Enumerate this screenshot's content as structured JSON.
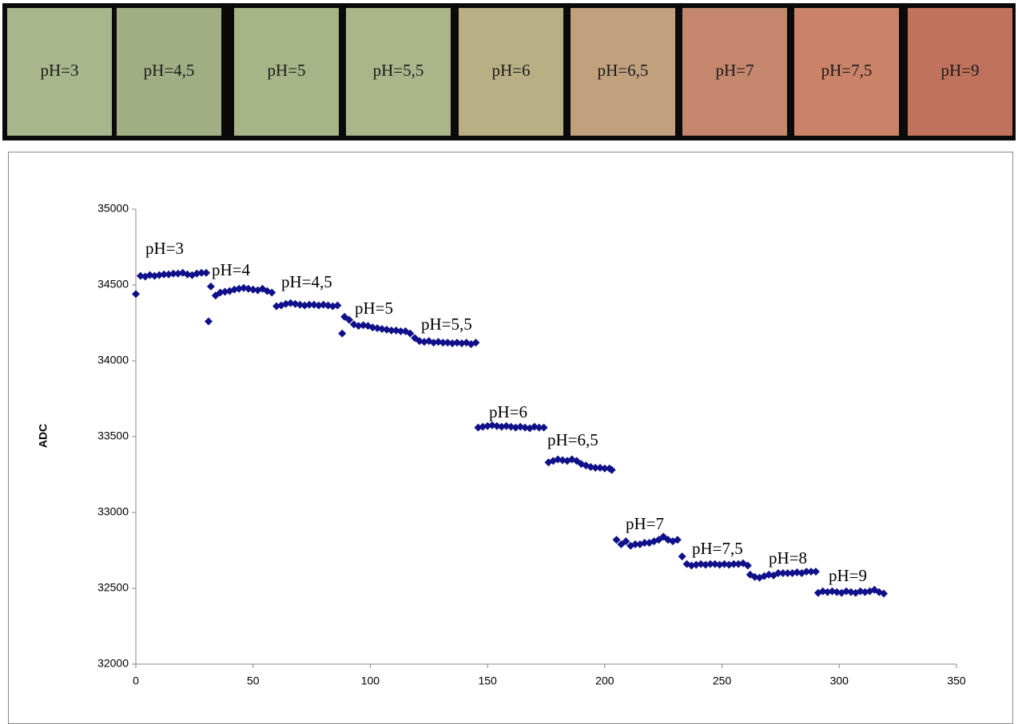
{
  "swatches": [
    {
      "label": "pH=3",
      "color": "#a9b58b"
    },
    {
      "label": "pH=4,5",
      "color": "#a1ae83"
    },
    {
      "label": "pH=5",
      "color": "#a7b487"
    },
    {
      "label": "pH=5,5",
      "color": "#abb589"
    },
    {
      "label": "pH=6",
      "color": "#b8b084"
    },
    {
      "label": "pH=6,5",
      "color": "#c1a07e"
    },
    {
      "label": "pH=7",
      "color": "#c4876d"
    },
    {
      "label": "pH=7,5",
      "color": "#ca8369"
    },
    {
      "label": "pH=9",
      "color": "#c1725d"
    }
  ],
  "chart_data": {
    "type": "scatter",
    "ylabel": "ADC",
    "color": "#10108a",
    "xlim": [
      0,
      350
    ],
    "xticks": [
      0,
      50,
      100,
      150,
      200,
      250,
      300,
      350
    ],
    "ylim": [
      32000,
      35000
    ],
    "yticks": [
      32000,
      32500,
      33000,
      33500,
      34000,
      34500,
      35000
    ],
    "x": [
      0,
      2,
      4,
      6,
      8,
      10,
      12,
      14,
      16,
      18,
      20,
      22,
      24,
      26,
      28,
      30,
      31,
      32,
      34,
      36,
      38,
      40,
      42,
      44,
      46,
      48,
      50,
      52,
      54,
      56,
      58,
      60,
      62,
      64,
      66,
      68,
      70,
      72,
      74,
      76,
      78,
      80,
      82,
      84,
      86,
      88,
      89,
      91,
      93,
      95,
      97,
      99,
      101,
      103,
      105,
      107,
      109,
      111,
      113,
      115,
      117,
      119,
      121,
      123,
      125,
      127,
      129,
      131,
      133,
      135,
      137,
      139,
      141,
      143,
      145,
      146,
      148,
      150,
      152,
      154,
      156,
      158,
      160,
      162,
      164,
      166,
      168,
      170,
      172,
      174,
      176,
      178,
      180,
      182,
      184,
      186,
      188,
      190,
      192,
      194,
      196,
      198,
      200,
      202,
      203,
      205,
      207,
      209,
      211,
      213,
      215,
      217,
      219,
      221,
      223,
      225,
      227,
      229,
      231,
      233,
      235,
      237,
      239,
      241,
      243,
      245,
      247,
      249,
      251,
      253,
      255,
      257,
      259,
      261,
      262,
      264,
      266,
      268,
      270,
      272,
      274,
      276,
      278,
      280,
      282,
      284,
      286,
      288,
      290,
      291,
      293,
      295,
      297,
      299,
      301,
      303,
      305,
      307,
      309,
      311,
      313,
      315,
      317,
      319
    ],
    "values": [
      34440,
      34560,
      34555,
      34565,
      34560,
      34565,
      34570,
      34570,
      34575,
      34575,
      34580,
      34570,
      34565,
      34575,
      34580,
      34580,
      34260,
      34490,
      34430,
      34450,
      34455,
      34460,
      34470,
      34475,
      34480,
      34475,
      34470,
      34465,
      34475,
      34460,
      34450,
      34360,
      34365,
      34375,
      34380,
      34375,
      34370,
      34365,
      34370,
      34370,
      34365,
      34370,
      34365,
      34360,
      34365,
      34180,
      34290,
      34270,
      34240,
      34230,
      34235,
      34230,
      34220,
      34215,
      34210,
      34205,
      34200,
      34200,
      34195,
      34195,
      34180,
      34150,
      34130,
      34125,
      34130,
      34120,
      34125,
      34120,
      34120,
      34115,
      34120,
      34115,
      34120,
      34110,
      34120,
      33560,
      33565,
      33570,
      33575,
      33570,
      33565,
      33570,
      33565,
      33560,
      33565,
      33560,
      33555,
      33565,
      33560,
      33560,
      33330,
      33340,
      33350,
      33345,
      33340,
      33350,
      33340,
      33320,
      33310,
      33300,
      33295,
      33295,
      33290,
      33290,
      33280,
      32820,
      32790,
      32810,
      32780,
      32790,
      32790,
      32800,
      32800,
      32810,
      32820,
      32840,
      32820,
      32810,
      32820,
      32710,
      32660,
      32650,
      32655,
      32660,
      32655,
      32660,
      32660,
      32655,
      32660,
      32655,
      32660,
      32660,
      32665,
      32650,
      32590,
      32575,
      32570,
      32580,
      32590,
      32585,
      32600,
      32600,
      32600,
      32600,
      32605,
      32600,
      32610,
      32610,
      32610,
      32470,
      32480,
      32475,
      32480,
      32475,
      32470,
      32480,
      32475,
      32470,
      32480,
      32475,
      32480,
      32490,
      32475,
      32465
    ],
    "annotations": [
      "pH=3",
      "pH=4",
      "pH=4,5",
      "pH=5",
      "pH=5,5",
      "pH=6",
      "pH=6,5",
      "pH=7",
      "pH=7,5",
      "pH=8",
      "pH=9"
    ]
  }
}
